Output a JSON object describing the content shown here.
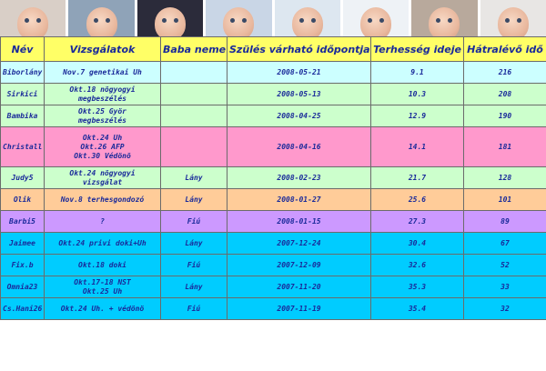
{
  "banner": {
    "photos": [
      "baby-photo-1",
      "baby-photo-2",
      "baby-photo-3",
      "baby-photo-4",
      "baby-photo-5",
      "baby-photo-6",
      "baby-photo-7",
      "baby-photo-8"
    ]
  },
  "table": {
    "headers": [
      "Név",
      "Vizsgálatok",
      "Baba neme",
      "Szülés várható időpontja",
      "Terhesség ideje",
      "Hátralévő idő"
    ],
    "rows": [
      {
        "color": "#ccffff",
        "nev": "Biborlány",
        "vizsgalatok": [
          "Nov.7 genetikai Uh"
        ],
        "baba_neme": "",
        "szules": "2008-05-21",
        "terhesseg": "9.1",
        "hatralevo": "216"
      },
      {
        "color": "#ccffcc",
        "nev": "Sirkici",
        "vizsgalatok": [
          "Okt.18 nögyogyi",
          "megbeszélés"
        ],
        "baba_neme": "",
        "szules": "2008-05-13",
        "terhesseg": "10.3",
        "hatralevo": "208"
      },
      {
        "color": "#ccffcc",
        "nev": "Bambika",
        "vizsgalatok": [
          "Okt.25 Györ",
          "megbeszélés"
        ],
        "baba_neme": "",
        "szules": "2008-04-25",
        "terhesseg": "12.9",
        "hatralevo": "190"
      },
      {
        "color": "#ff99cc",
        "nev": "Christall",
        "vizsgalatok": [
          "Okt.24 Uh",
          "Okt.26 AFP",
          "Okt.30 Védönö"
        ],
        "baba_neme": "",
        "szules": "2008-04-16",
        "terhesseg": "14.1",
        "hatralevo": "181"
      },
      {
        "color": "#ccffcc",
        "nev": "Judy5",
        "vizsgalatok": [
          "Okt.24 nögyogyi",
          "vizsgálat"
        ],
        "baba_neme": "Lány",
        "szules": "2008-02-23",
        "terhesseg": "21.7",
        "hatralevo": "128"
      },
      {
        "color": "#ffcc99",
        "nev": "Olik",
        "vizsgalatok": [
          "Nov.8 terhesgondozó"
        ],
        "baba_neme": "Lány",
        "szules": "2008-01-27",
        "terhesseg": "25.6",
        "hatralevo": "101"
      },
      {
        "color": "#cc99ff",
        "nev": "Barbi5",
        "vizsgalatok": [
          "?"
        ],
        "baba_neme": "Fiú",
        "szules": "2008-01-15",
        "terhesseg": "27.3",
        "hatralevo": "89"
      },
      {
        "color": "#00ccff",
        "nev": "Jaimee",
        "vizsgalatok": [
          "Okt.24 privi doki+Uh"
        ],
        "baba_neme": "Lány",
        "szules": "2007-12-24",
        "terhesseg": "30.4",
        "hatralevo": "67"
      },
      {
        "color": "#00ccff",
        "nev": "Fix.b",
        "vizsgalatok": [
          "Okt.18 doki"
        ],
        "baba_neme": "Fiú",
        "szules": "2007-12-09",
        "terhesseg": "32.6",
        "hatralevo": "52"
      },
      {
        "color": "#00ccff",
        "nev": "Omnia23",
        "vizsgalatok": [
          "Okt.17-18 NST",
          "Okt.25 Uh"
        ],
        "baba_neme": "Lány",
        "szules": "2007-11-20",
        "terhesseg": "35.3",
        "hatralevo": "33"
      },
      {
        "color": "#00ccff",
        "nev": "Cs.Hani26",
        "vizsgalatok": [
          "Okt.24 Uh. + védönö"
        ],
        "baba_neme": "Fiú",
        "szules": "2007-11-19",
        "terhesseg": "35.4",
        "hatralevo": "32"
      }
    ]
  }
}
